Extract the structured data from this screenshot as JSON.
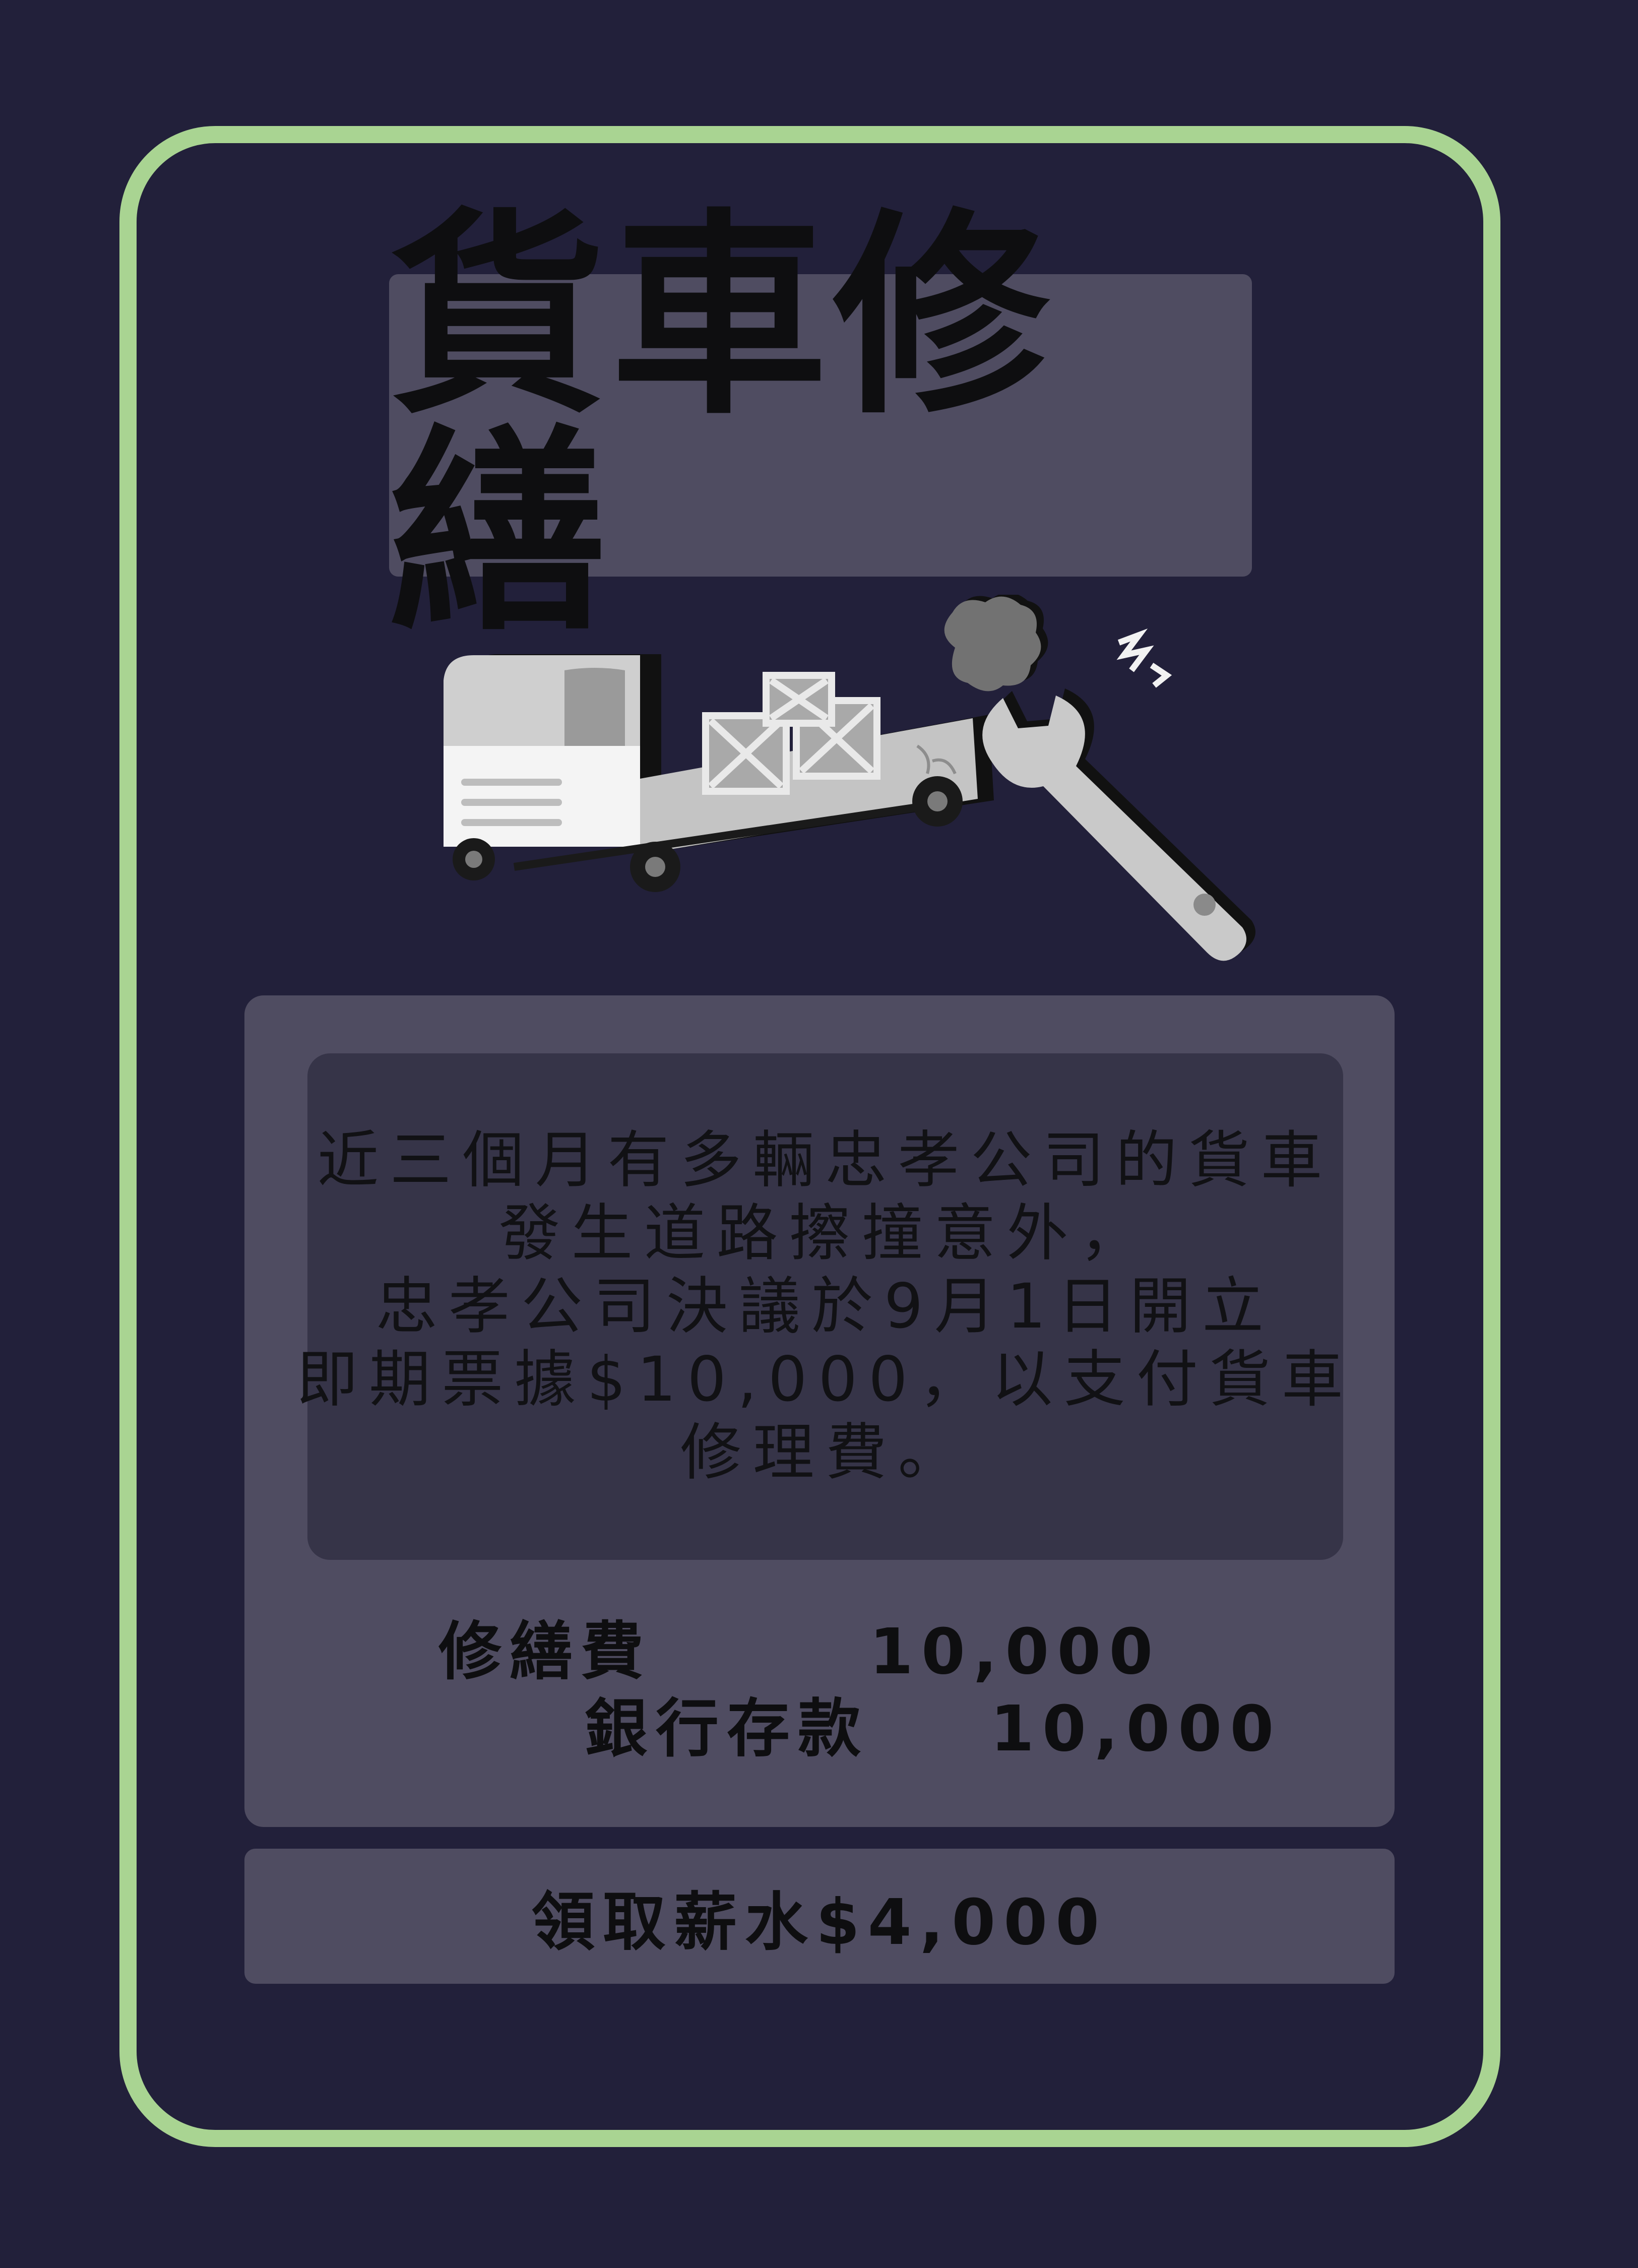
{
  "card": {
    "title": "貨車修繕",
    "story_lines": [
      "近三個月有多輛忠孝公司的貨車",
      "發生道路擦撞意外，",
      "忠孝公司決議於9月1日開立",
      "即期票據$10,000，以支付貨車",
      "修理費。"
    ],
    "entry": {
      "debit_label": "修繕費",
      "debit_amount": "10,000",
      "credit_label": "銀行存款",
      "credit_amount": "10,000"
    },
    "salary": "領取薪水$4,000"
  },
  "illustration": {
    "icons": [
      "truck-icon",
      "cargo-crate-icon",
      "smoke-icon",
      "spark-icon",
      "wrench-icon"
    ]
  },
  "colors": {
    "background": "#22203a",
    "frame": "#a9d492",
    "panel": "#4f4c61",
    "story_box": "#363448"
  }
}
